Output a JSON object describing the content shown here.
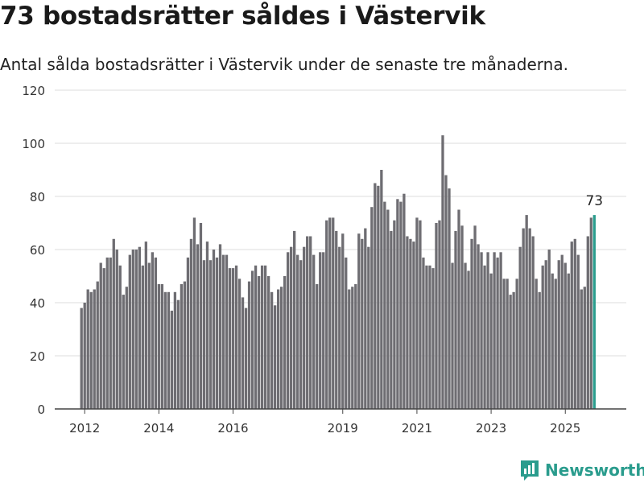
{
  "title": "73 bostadsrätter såldes i Västervik",
  "subtitle": "Antal sålda bostadsrätter i Västervik under de senaste tre månaderna.",
  "brand": "Newsworthy",
  "colors": {
    "bar": "#6e6d72",
    "highlight": "#2a9c8d",
    "grid": "#dcdcdc",
    "axis": "#444444"
  },
  "chart_data": {
    "type": "bar",
    "ylim": [
      0,
      120
    ],
    "yticks": [
      0,
      20,
      40,
      60,
      80,
      100,
      120
    ],
    "xticks": [
      "2012",
      "2014",
      "2016",
      "2019",
      "2021",
      "2023",
      "2025"
    ],
    "xtick_index": [
      1,
      24,
      47,
      81,
      104,
      127,
      150
    ],
    "grid": true,
    "highlight_label": "73",
    "values": [
      38,
      40,
      45,
      44,
      45,
      48,
      55,
      53,
      57,
      57,
      64,
      60,
      54,
      43,
      46,
      58,
      60,
      60,
      61,
      54,
      63,
      55,
      59,
      57,
      47,
      47,
      44,
      44,
      37,
      44,
      41,
      47,
      48,
      57,
      64,
      72,
      62,
      70,
      56,
      63,
      56,
      60,
      57,
      62,
      58,
      58,
      53,
      53,
      54,
      49,
      42,
      38,
      48,
      52,
      54,
      50,
      54,
      54,
      50,
      44,
      39,
      45,
      46,
      50,
      59,
      61,
      67,
      58,
      56,
      61,
      65,
      65,
      58,
      47,
      59,
      59,
      71,
      72,
      72,
      67,
      61,
      66,
      57,
      45,
      46,
      47,
      66,
      64,
      68,
      61,
      76,
      85,
      84,
      90,
      78,
      75,
      67,
      71,
      79,
      78,
      81,
      65,
      64,
      63,
      72,
      71,
      57,
      54,
      54,
      53,
      70,
      71,
      103,
      88,
      83,
      55,
      67,
      75,
      69,
      55,
      52,
      64,
      69,
      62,
      59,
      54,
      59,
      51,
      59,
      57,
      59,
      49,
      49,
      43,
      44,
      49,
      61,
      68,
      73,
      68,
      65,
      49,
      44,
      54,
      56,
      60,
      51,
      49,
      56,
      58,
      55,
      51,
      63,
      64,
      58,
      45,
      46,
      65,
      72,
      73
    ]
  }
}
